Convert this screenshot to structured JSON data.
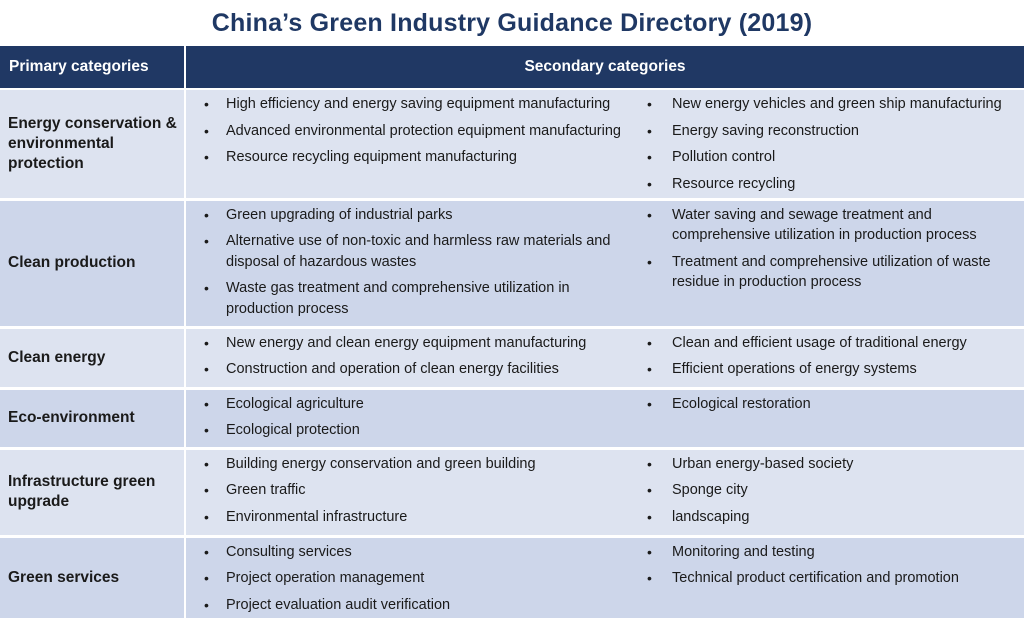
{
  "title": "China’s Green Industry Guidance Directory (2019)",
  "headers": {
    "primary": "Primary categories",
    "secondary": "Secondary categories"
  },
  "bullet_glyph": "•",
  "rows": [
    {
      "primary": "Energy conservation & environmental protection",
      "left": [
        "High efficiency and energy saving equipment manufacturing",
        "Advanced environmental protection equipment manufacturing",
        "Resource recycling equipment manufacturing"
      ],
      "right": [
        "New energy vehicles and green ship manufacturing",
        "Energy saving reconstruction",
        "Pollution control",
        "Resource recycling"
      ]
    },
    {
      "primary": "Clean production",
      "left": [
        "Green upgrading of industrial parks",
        "Alternative use of non-toxic and harmless raw materials and disposal of hazardous wastes",
        "Waste gas treatment and comprehensive utilization in production process"
      ],
      "right": [
        "Water saving and sewage treatment and comprehensive utilization in production process",
        "Treatment and comprehensive utilization of waste residue in production process"
      ]
    },
    {
      "primary": "Clean energy",
      "left": [
        "New energy and clean energy equipment manufacturing",
        "Construction and operation of clean energy facilities"
      ],
      "right": [
        "Clean and efficient usage of traditional energy",
        "Efficient operations of energy systems"
      ]
    },
    {
      "primary": "Eco-environment",
      "left": [
        "Ecological agriculture",
        "Ecological protection"
      ],
      "right": [
        "Ecological restoration"
      ]
    },
    {
      "primary": "Infrastructure green upgrade",
      "left": [
        "Building energy conservation and green building",
        "Green traffic",
        "Environmental infrastructure"
      ],
      "right": [
        "Urban energy-based society",
        "Sponge city",
        "landscaping"
      ]
    },
    {
      "primary": "Green services",
      "left": [
        "Consulting services",
        "Project operation management",
        "Project evaluation audit verification"
      ],
      "right": [
        "Monitoring and testing",
        "Technical product certification and promotion"
      ]
    }
  ]
}
